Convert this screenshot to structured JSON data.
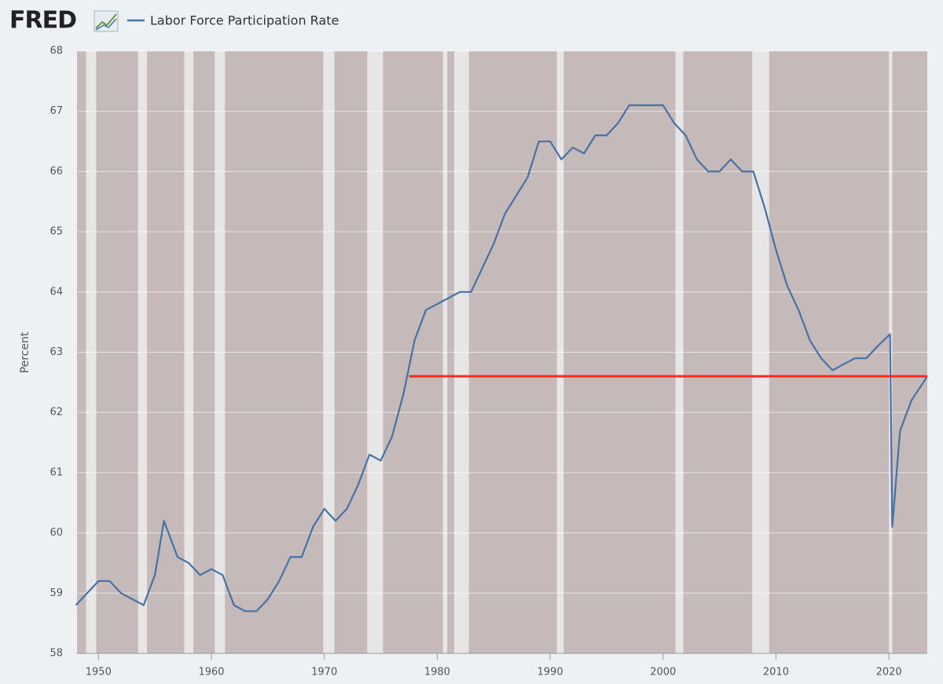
{
  "chart_data": {
    "type": "line",
    "logo": "FRED",
    "y_label": "Percent",
    "series": [
      {
        "name": "Labor Force Participation Rate",
        "color": "#4572a7",
        "x": [
          1948,
          1949,
          1950,
          1951,
          1952,
          1953,
          1954,
          1955,
          1955.8,
          1957,
          1958,
          1959,
          1960,
          1961,
          1962,
          1963,
          1964,
          1965,
          1966,
          1967,
          1968,
          1969,
          1970,
          1971,
          1972,
          1973,
          1974,
          1975,
          1976,
          1977,
          1978,
          1979,
          1980,
          1981,
          1982,
          1983,
          1984,
          1985,
          1986,
          1987,
          1988,
          1989,
          1990,
          1991,
          1992,
          1993,
          1994,
          1995,
          1996,
          1997,
          1998,
          1999,
          2000,
          2001,
          2002,
          2003,
          2004,
          2005,
          2006,
          2007,
          2008,
          2009,
          2010,
          2011,
          2012,
          2013,
          2014,
          2015,
          2016,
          2017,
          2018,
          2019,
          2020.1,
          2020.3,
          2020.9,
          2021,
          2022,
          2023.4
        ],
        "values": [
          58.8,
          59.0,
          59.2,
          59.2,
          59.0,
          58.9,
          58.8,
          59.3,
          60.2,
          59.6,
          59.5,
          59.3,
          59.4,
          59.3,
          58.8,
          58.7,
          58.7,
          58.9,
          59.2,
          59.6,
          59.6,
          60.1,
          60.4,
          60.2,
          60.4,
          60.8,
          61.3,
          61.2,
          61.6,
          62.3,
          63.2,
          63.7,
          63.8,
          63.9,
          64.0,
          64.0,
          64.4,
          64.8,
          65.3,
          65.6,
          65.9,
          66.5,
          66.5,
          66.2,
          66.4,
          66.3,
          66.6,
          66.6,
          66.8,
          67.1,
          67.1,
          67.1,
          67.1,
          66.8,
          66.6,
          66.2,
          66.0,
          66.0,
          66.2,
          66.0,
          66.0,
          65.4,
          64.7,
          64.1,
          63.7,
          63.2,
          62.9,
          62.7,
          62.8,
          62.9,
          62.9,
          63.1,
          63.3,
          60.1,
          61.5,
          61.7,
          62.2,
          62.6
        ]
      }
    ],
    "reference_line": {
      "x": [
        1977.5,
        2023.4
      ],
      "value": 62.6,
      "color": "#ff2a1a"
    },
    "recessions": [
      [
        1948.9,
        1949.8
      ],
      [
        1953.5,
        1954.3
      ],
      [
        1957.6,
        1958.4
      ],
      [
        1960.3,
        1961.2
      ],
      [
        1969.9,
        1970.9
      ],
      [
        1973.8,
        1975.2
      ],
      [
        1980.5,
        1980.9
      ],
      [
        1981.5,
        1982.8
      ],
      [
        1990.6,
        1991.2
      ],
      [
        2001.1,
        2001.8
      ],
      [
        2007.9,
        2009.4
      ],
      [
        2020.0,
        2020.3
      ]
    ],
    "xlim": [
      1948.1,
      2023.4
    ],
    "xticks": [
      1950,
      1960,
      1970,
      1980,
      1990,
      2000,
      2010,
      2020
    ],
    "ylim": [
      58,
      68
    ],
    "yticks": [
      58,
      59,
      60,
      61,
      62,
      63,
      64,
      65,
      66,
      67,
      68
    ],
    "grid": true
  }
}
